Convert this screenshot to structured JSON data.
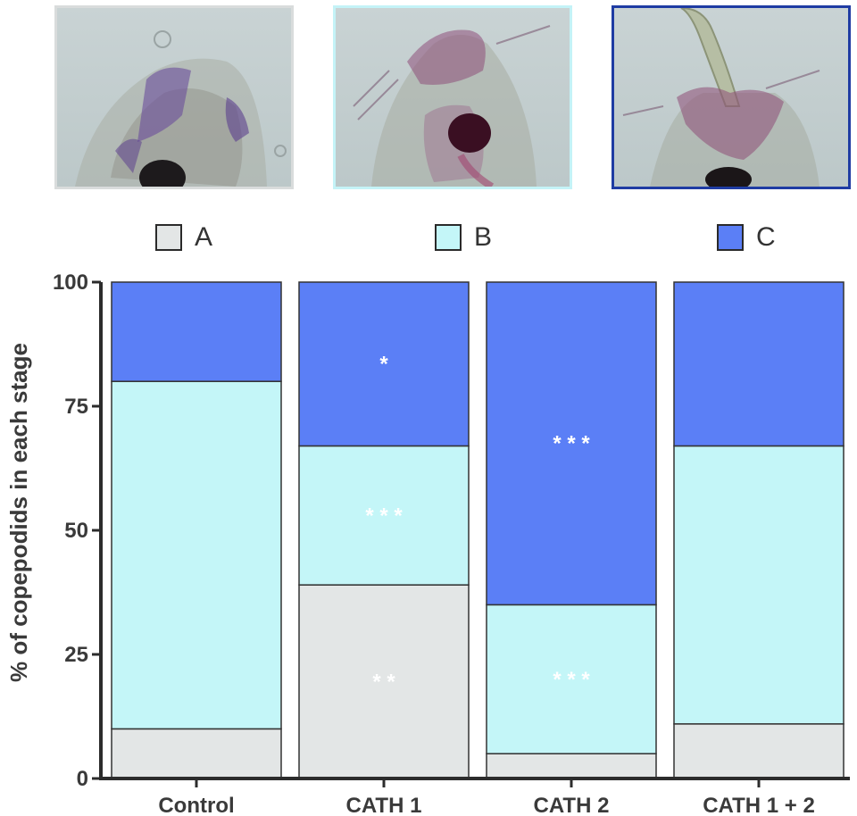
{
  "legend": [
    {
      "label": "A",
      "color": "#e3e6e6"
    },
    {
      "label": "B",
      "color": "#c4f6f8"
    },
    {
      "label": "C",
      "color": "#5b7ff6"
    }
  ],
  "photos": [
    {
      "stage": "A",
      "frame_color": "#d9dcdc"
    },
    {
      "stage": "B",
      "frame_color": "#c4f3f7"
    },
    {
      "stage": "C",
      "frame_color": "#1f3ca3"
    }
  ],
  "chart_data": {
    "type": "bar",
    "stacked": true,
    "categories": [
      "Control",
      "CATH 1",
      "CATH 2",
      "CATH 1 + 2"
    ],
    "series": [
      {
        "name": "A",
        "color": "#e3e6e6",
        "values": [
          10,
          39,
          5,
          11
        ]
      },
      {
        "name": "B",
        "color": "#c4f6f8",
        "values": [
          70,
          28,
          30,
          56
        ]
      },
      {
        "name": "C",
        "color": "#5b7ff6",
        "values": [
          20,
          33,
          65,
          33
        ]
      }
    ],
    "ylabel": "% of copepodids in each stage",
    "ylim": [
      0,
      100
    ],
    "yticks": [
      0,
      25,
      50,
      75,
      100
    ],
    "grid": false,
    "legend_position": "top",
    "annotations": [
      {
        "category": "CATH 1",
        "series": "C",
        "text": "*"
      },
      {
        "category": "CATH 1",
        "series": "B",
        "text": "* * *"
      },
      {
        "category": "CATH 1",
        "series": "A",
        "text": "* *"
      },
      {
        "category": "CATH 2",
        "series": "C",
        "text": "* * *"
      },
      {
        "category": "CATH 2",
        "series": "B",
        "text": "* * *"
      }
    ]
  }
}
